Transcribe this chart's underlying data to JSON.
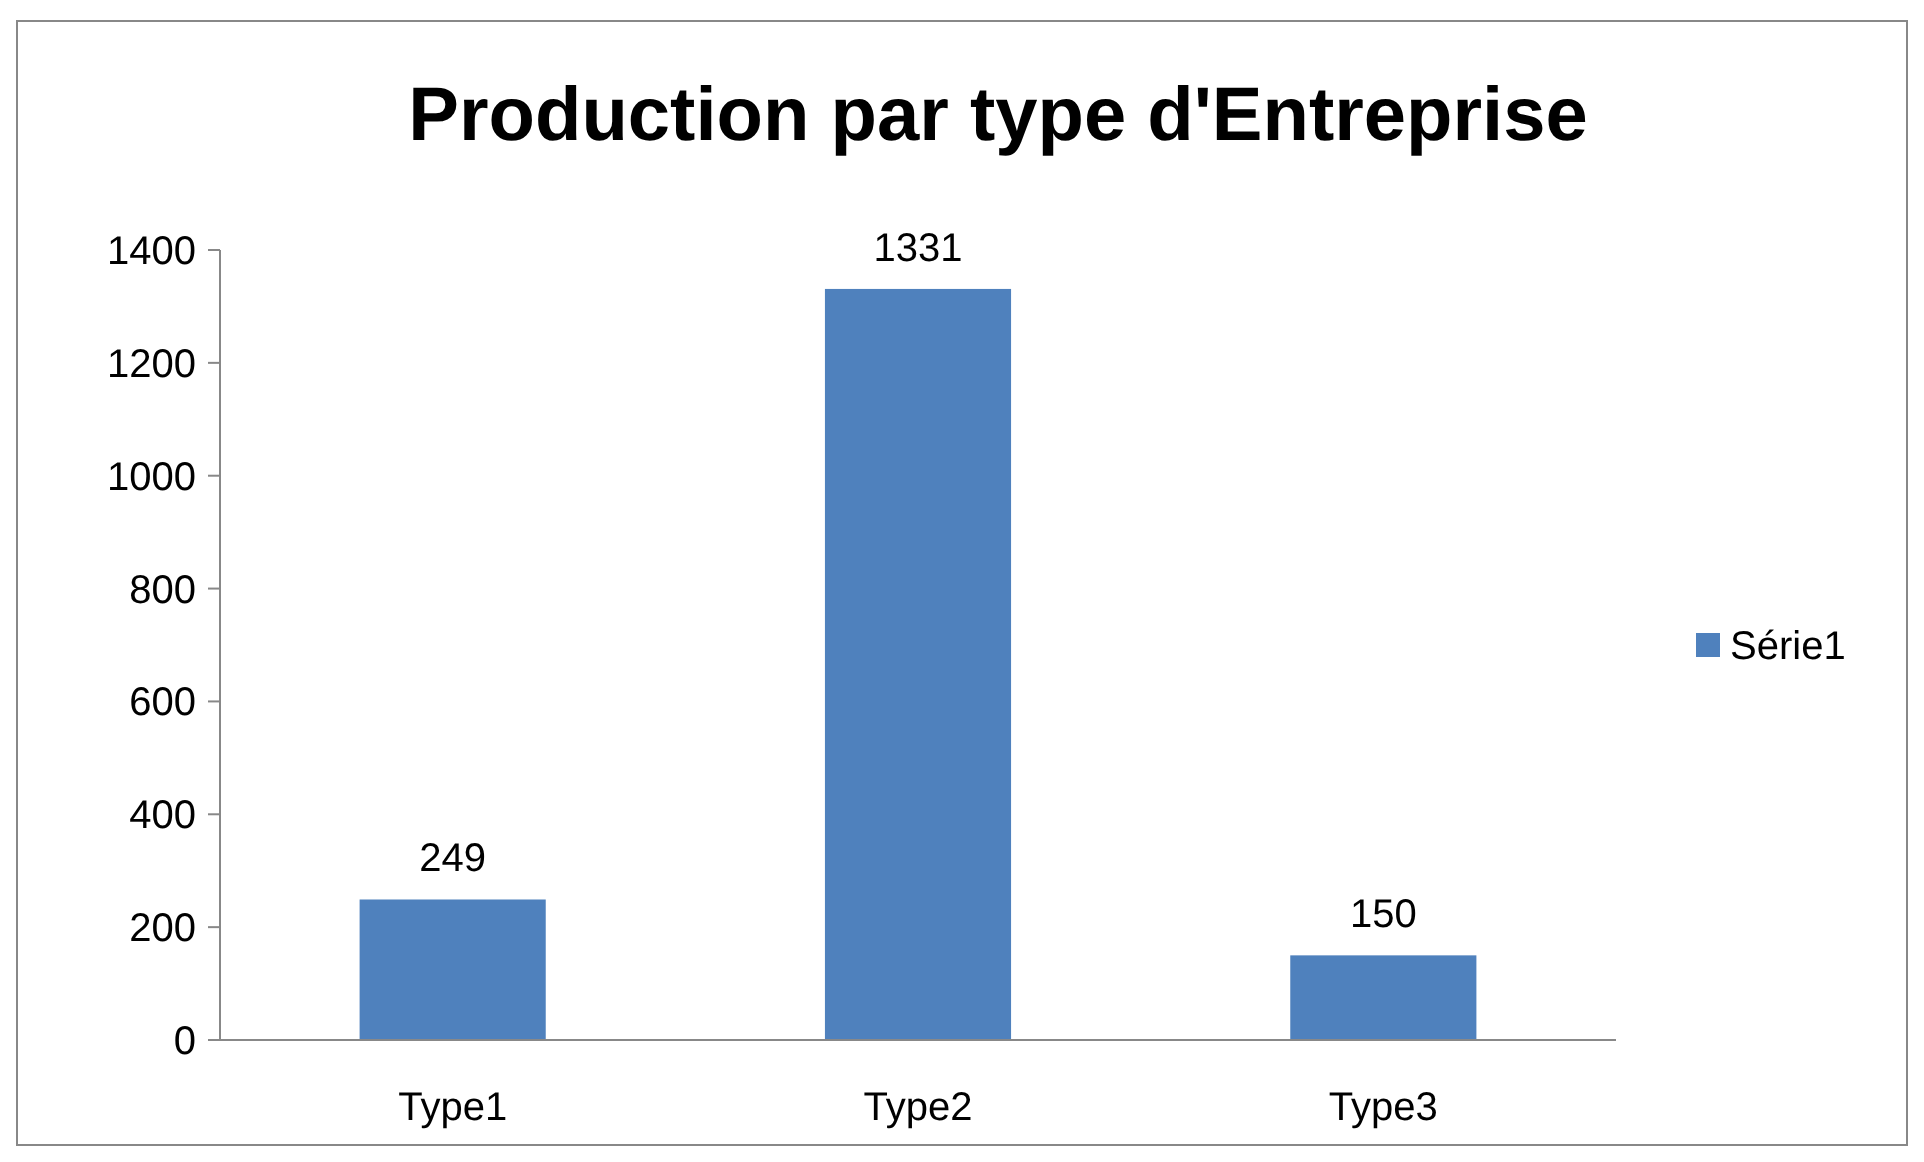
{
  "chart_data": {
    "type": "bar",
    "title": "Production par type d'Entreprise",
    "categories": [
      "Type1",
      "Type2",
      "Type3"
    ],
    "series": [
      {
        "name": "Série1",
        "color": "#4f81bd",
        "values": [
          249,
          1331,
          150
        ]
      }
    ],
    "ylim": [
      0,
      1400
    ],
    "yticks": [
      0,
      200,
      400,
      600,
      800,
      1000,
      1200,
      1400
    ],
    "data_labels": true,
    "legend": "right",
    "grid": false
  }
}
